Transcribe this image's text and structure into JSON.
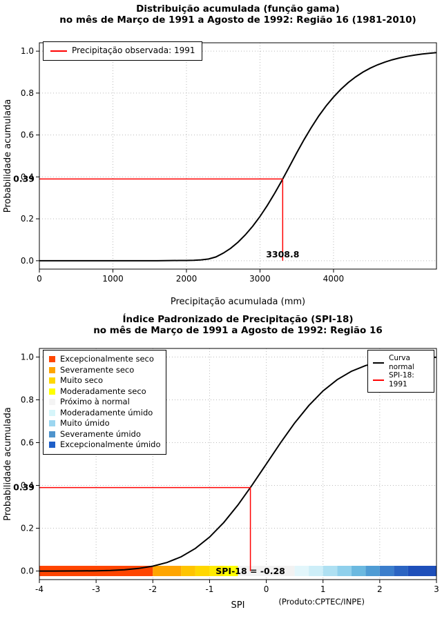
{
  "credit": "(Produto:CPTEC/INPE)",
  "chart_data": [
    {
      "type": "line",
      "title": "Distribuição acumulada (função gama)",
      "subtitle": "no mês de Março de 1991 a Agosto de 1992: Região 16 (1981-2010)",
      "xlabel": "Precipitação acumulada (mm)",
      "ylabel": "Probabilidade acumulada",
      "xlim": [
        0,
        5400
      ],
      "ylim": [
        0,
        1
      ],
      "xticks": [
        0,
        1000,
        2000,
        3000,
        4000
      ],
      "xtick_labels": [
        "0",
        "1000",
        "2000",
        "3000",
        "4000"
      ],
      "yticks": [
        0,
        0.2,
        0.4,
        0.6,
        0.8,
        1
      ],
      "ytick_labels": [
        "0.0",
        "0.2",
        "0.4",
        "0.6",
        "0.8",
        "1.0"
      ],
      "grid": true,
      "series": [
        {
          "id": "gamma-cdf-curve",
          "name": "Distribuição gama acumulada",
          "color": "#000000",
          "x": [
            0,
            600,
            1200,
            1600,
            1900,
            2000,
            2100,
            2200,
            2300,
            2400,
            2500,
            2600,
            2700,
            2800,
            2900,
            3000,
            3100,
            3200,
            3300,
            3400,
            3500,
            3600,
            3700,
            3800,
            3900,
            4000,
            4100,
            4200,
            4300,
            4400,
            4500,
            4600,
            4700,
            4800,
            4900,
            5000,
            5100,
            5200,
            5300,
            5400
          ],
          "y": [
            0,
            0,
            0,
            0,
            0.001,
            0.001,
            0.002,
            0.004,
            0.008,
            0.018,
            0.036,
            0.059,
            0.088,
            0.123,
            0.164,
            0.211,
            0.264,
            0.322,
            0.384,
            0.449,
            0.515,
            0.578,
            0.637,
            0.691,
            0.739,
            0.781,
            0.818,
            0.85,
            0.877,
            0.9,
            0.919,
            0.935,
            0.948,
            0.959,
            0.968,
            0.975,
            0.981,
            0.986,
            0.99,
            0.993
          ]
        }
      ],
      "marker": {
        "x": 3308.8,
        "y": 0.39,
        "color": "#FF0000",
        "x_label": "3308.8",
        "y_label": "0.39"
      },
      "legend": {
        "position": "top-left",
        "items": [
          {
            "swatch": "line",
            "color": "#FF0000",
            "label": "Precipitação observada: 1991"
          }
        ]
      }
    },
    {
      "type": "line",
      "title": "Índice Padronizado de Precipitação (SPI-18)",
      "subtitle": "no mês de Março de 1991 a Agosto de 1992: Região 16",
      "xlabel": "SPI",
      "ylabel": "Probabilidade acumulada",
      "xlim": [
        -4,
        3
      ],
      "ylim": [
        0,
        1
      ],
      "xticks": [
        -4,
        -3,
        -2,
        -1,
        0,
        1,
        2,
        3
      ],
      "xtick_labels": [
        "-4",
        "-3",
        "-2",
        "-1",
        "0",
        "1",
        "2",
        "3"
      ],
      "yticks": [
        0,
        0.2,
        0.4,
        0.6,
        0.8,
        1
      ],
      "ytick_labels": [
        "0.0",
        "0.2",
        "0.4",
        "0.6",
        "0.8",
        "1.0"
      ],
      "grid": true,
      "series": [
        {
          "id": "normal-cdf-curve",
          "name": "Curva normal",
          "color": "#000000",
          "x": [
            -4,
            -3.75,
            -3.5,
            -3.25,
            -3,
            -2.75,
            -2.5,
            -2.25,
            -2,
            -1.75,
            -1.5,
            -1.25,
            -1,
            -0.75,
            -0.5,
            -0.25,
            0,
            0.25,
            0.5,
            0.75,
            1,
            1.25,
            1.5,
            1.75,
            2,
            2.25,
            2.5,
            2.75,
            3
          ],
          "y": [
            0,
            0.0001,
            0.0002,
            0.0006,
            0.0013,
            0.003,
            0.0062,
            0.0122,
            0.0228,
            0.0401,
            0.0668,
            0.1056,
            0.1587,
            0.2266,
            0.3085,
            0.4013,
            0.5,
            0.5987,
            0.6915,
            0.7734,
            0.8413,
            0.8944,
            0.9332,
            0.9599,
            0.9772,
            0.9878,
            0.9938,
            0.997,
            0.9987
          ]
        }
      ],
      "marker": {
        "x": -0.28,
        "y": 0.39,
        "color": "#FF0000",
        "x_label": "SPI-18 = -0.28",
        "y_label": "0.39"
      },
      "category_legend": {
        "position": "top-left",
        "items": [
          {
            "swatch": "square",
            "color": "#FF4500",
            "label": "Excepcionalmente seco"
          },
          {
            "swatch": "square",
            "color": "#FFA500",
            "label": "Severamente seco"
          },
          {
            "swatch": "square",
            "color": "#FFD700",
            "label": "Muito seco"
          },
          {
            "swatch": "square",
            "color": "#FFFF00",
            "label": "Moderadamente seco"
          },
          {
            "swatch": "square",
            "color": "#F4F4F4",
            "label": "Próximo à normal"
          },
          {
            "swatch": "square",
            "color": "#D6F5FA",
            "label": "Moderadamente úmido"
          },
          {
            "swatch": "square",
            "color": "#9CD6F0",
            "label": "Muito úmido"
          },
          {
            "swatch": "square",
            "color": "#4F94CD",
            "label": "Severamente úmido"
          },
          {
            "swatch": "square",
            "color": "#1E5FC8",
            "label": "Excepcionalmente úmido"
          }
        ]
      },
      "curve_legend": {
        "position": "top-right",
        "items": [
          {
            "swatch": "line",
            "color": "#000000",
            "label": "Curva normal"
          },
          {
            "swatch": "line",
            "color": "#FF0000",
            "label": "SPI-18: 1991"
          }
        ]
      },
      "spi_bar": {
        "segments": [
          {
            "from": -4,
            "to": -2,
            "color": "#FF4500"
          },
          {
            "from": -2,
            "to": -1.5,
            "color": "#FFA500"
          },
          {
            "from": -1.5,
            "to": -1.25,
            "color": "#FFC400"
          },
          {
            "from": -1.25,
            "to": -1,
            "color": "#FFD700"
          },
          {
            "from": -1,
            "to": -0.75,
            "color": "#FFEB00"
          },
          {
            "from": -0.75,
            "to": -0.5,
            "color": "#FFFF00"
          },
          {
            "from": -0.5,
            "to": 0.5,
            "color": "#F2F2F2"
          },
          {
            "from": 0.5,
            "to": 0.75,
            "color": "#E2F6FB"
          },
          {
            "from": 0.75,
            "to": 1,
            "color": "#CDEEF8"
          },
          {
            "from": 1,
            "to": 1.25,
            "color": "#AEE0F2"
          },
          {
            "from": 1.25,
            "to": 1.5,
            "color": "#8FD0EC"
          },
          {
            "from": 1.5,
            "to": 1.75,
            "color": "#6BB9E0"
          },
          {
            "from": 1.75,
            "to": 2,
            "color": "#4F9CD4"
          },
          {
            "from": 2,
            "to": 2.25,
            "color": "#3B7ECC"
          },
          {
            "from": 2.25,
            "to": 2.5,
            "color": "#2B64C2"
          },
          {
            "from": 2.5,
            "to": 3,
            "color": "#1E4FBA"
          }
        ]
      }
    }
  ]
}
